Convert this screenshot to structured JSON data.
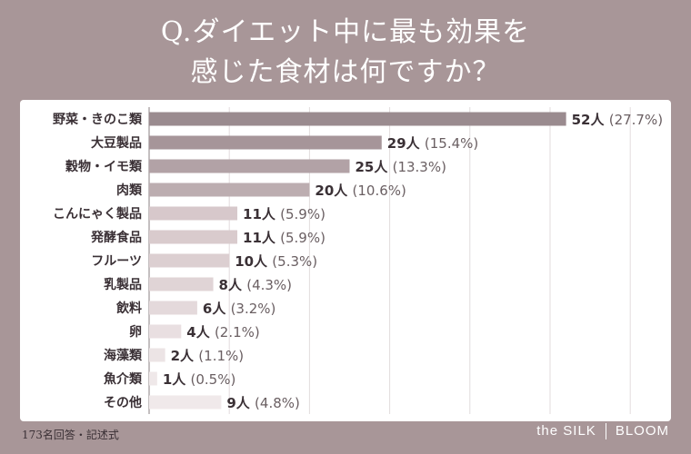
{
  "title_line1": "Q.ダイエット中に最も効果を",
  "title_line2": "感じた食材は何ですか？",
  "footer_note": "173名回答・記述式",
  "brand": {
    "left": "the SILK",
    "right": "BLOOM"
  },
  "chart_data": {
    "type": "bar",
    "orientation": "horizontal",
    "categories": [
      "野菜・きのこ類",
      "大豆製品",
      "穀物・イモ類",
      "肉類",
      "こんにゃく製品",
      "発酵食品",
      "フルーツ",
      "乳製品",
      "飲料",
      "卵",
      "海藻類",
      "魚介類",
      "その他"
    ],
    "values": [
      52,
      29,
      25,
      20,
      11,
      11,
      10,
      8,
      6,
      4,
      2,
      1,
      9
    ],
    "labels": [
      "52人",
      "29人",
      "25人",
      "20人",
      "11人",
      "11人",
      "10人",
      "8人",
      "6人",
      "4人",
      "2人",
      "1人",
      "9人"
    ],
    "percents": [
      "(27.7%)",
      "(15.4%)",
      "(13.3%)",
      "(10.6%)",
      "(5.9%)",
      "(5.9%)",
      "(5.3%)",
      "(4.3%)",
      "(3.2%)",
      "(2.1%)",
      "(1.1%)",
      "(0.5%)",
      "(4.8%)"
    ],
    "colors": [
      "#9a8b8f",
      "#a69599",
      "#b2a2a6",
      "#bcadb0",
      "#d7c8cb",
      "#d9cbcd",
      "#dccfd1",
      "#e0d4d6",
      "#e4d9db",
      "#e9dfe1",
      "#ece4e5",
      "#efe8e9",
      "#f0e9ea"
    ],
    "grid": true,
    "xlim": [
      0,
      61
    ]
  }
}
